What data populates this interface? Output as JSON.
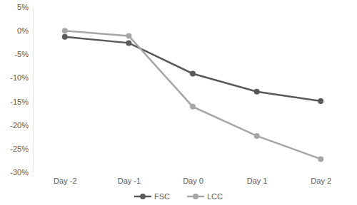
{
  "chart_data": {
    "type": "line",
    "categories": [
      "Day -2",
      "Day -1",
      "Day 0",
      "Day 1",
      "Day 2"
    ],
    "series": [
      {
        "name": "FSC",
        "color": "#595959",
        "marker": "circle",
        "values": [
          -1.3,
          -2.6,
          -9.1,
          -12.9,
          -14.9
        ]
      },
      {
        "name": "LCC",
        "color": "#a6a6a6",
        "marker": "circle",
        "values": [
          0,
          -1.1,
          -16.1,
          -22.3,
          -27.2
        ]
      }
    ],
    "ylim": [
      -30,
      5
    ],
    "yticks": [
      {
        "value": -30,
        "label": "-30%"
      },
      {
        "value": -25,
        "label": "-25%"
      },
      {
        "value": -20,
        "label": "-20%"
      },
      {
        "value": -15,
        "label": "-15%"
      },
      {
        "value": -10,
        "label": "-10%"
      },
      {
        "value": -5,
        "label": "-5%"
      },
      {
        "value": 0,
        "label": "0%"
      },
      {
        "value": 5,
        "label": "5%"
      }
    ],
    "grid": false,
    "legend": "bottom"
  }
}
